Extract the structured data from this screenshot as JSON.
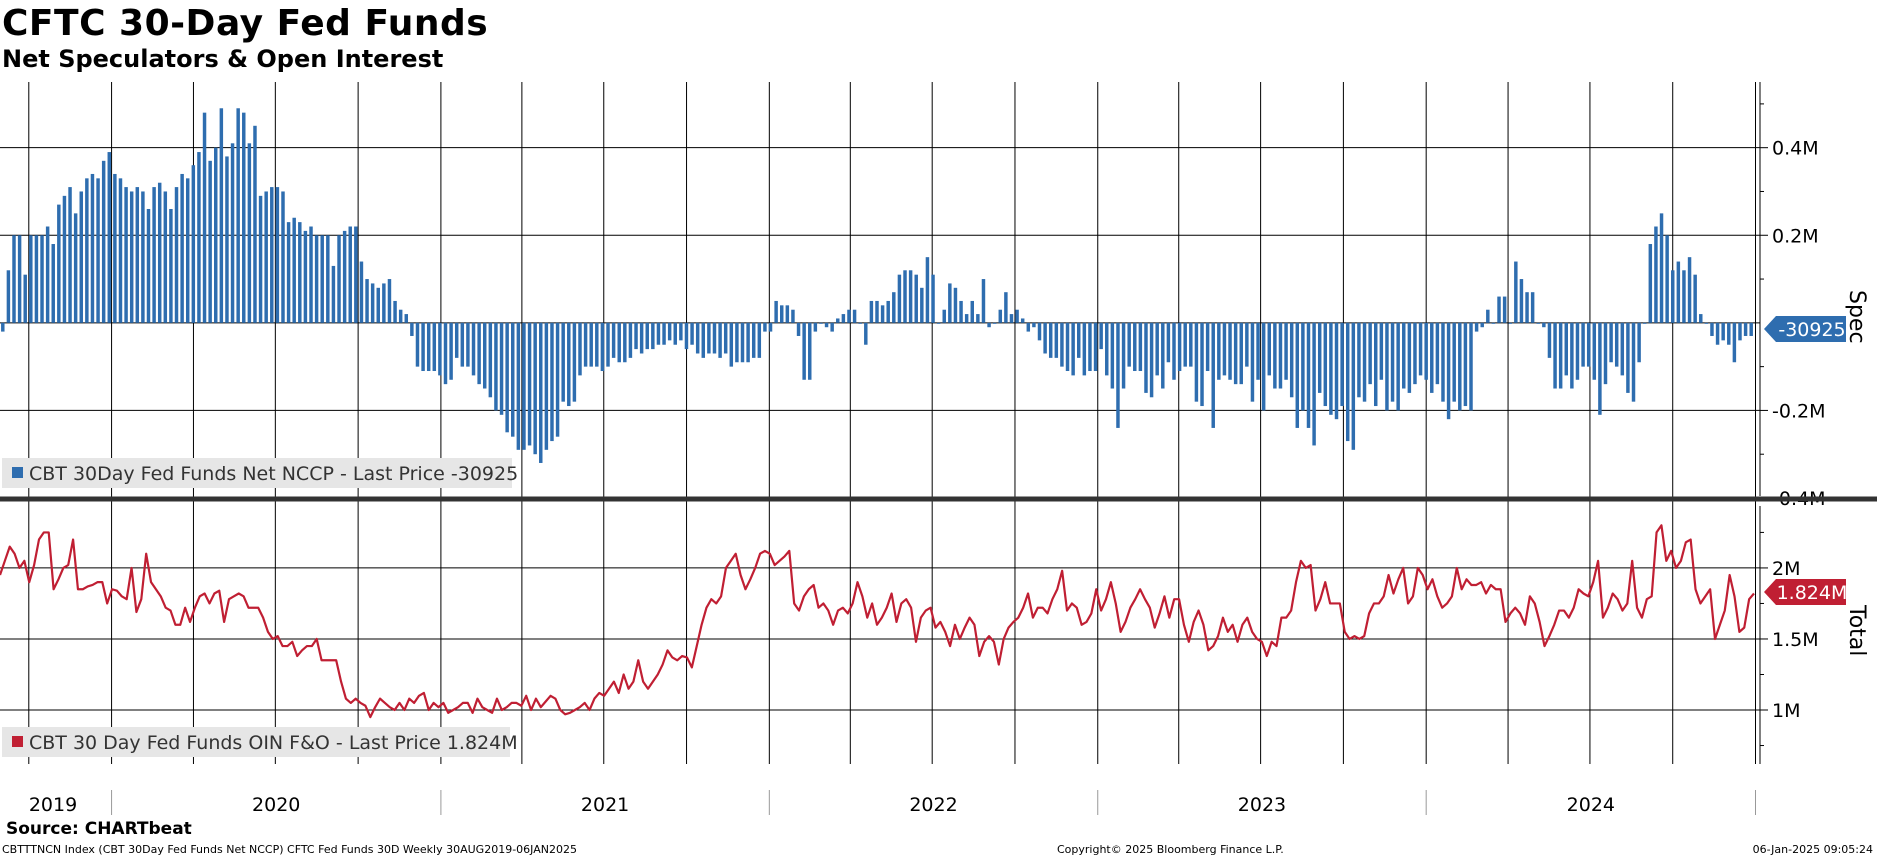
{
  "title": "CFTC 30-Day Fed Funds",
  "subtitle": "Net Speculators & Open Interest",
  "source": "Source: CHARTbeat",
  "footer": {
    "left": "CBTTTNCN Index (CBT 30Day Fed Funds Net NCCP) CFTC Fed Funds 30D  Weekly 30AUG2019-06JAN2025",
    "center": "Copyright© 2025 Bloomberg Finance L.P.",
    "right": "06-Jan-2025 09:05:24"
  },
  "colors": {
    "spec": "#2e6daf",
    "total": "#c01f33",
    "grid": "#000000"
  },
  "chart_data": [
    {
      "type": "bar",
      "panel": "top",
      "axis_title": "Spec",
      "legend": "CBT 30Day Fed Funds Net NCCP - Last Price -30925",
      "last_value_label": "-30925",
      "last_value": -30925,
      "ylim": [
        -0.4,
        0.55
      ],
      "y_unit": "M",
      "yticks": [
        0.4,
        0.2,
        -0.2,
        -0.4
      ],
      "ytick_labels": [
        "0.4M",
        "0.2M",
        "-0.2M",
        "-0.4M"
      ],
      "x_start": "2019-08-30",
      "x_end": "2025-01-06",
      "frequency": "weekly",
      "values": [
        -0.02,
        0.12,
        0.2,
        0.2,
        0.11,
        0.2,
        0.2,
        0.2,
        0.22,
        0.18,
        0.27,
        0.29,
        0.31,
        0.25,
        0.3,
        0.33,
        0.34,
        0.33,
        0.37,
        0.39,
        0.34,
        0.33,
        0.31,
        0.3,
        0.31,
        0.3,
        0.26,
        0.31,
        0.32,
        0.3,
        0.26,
        0.31,
        0.34,
        0.33,
        0.36,
        0.39,
        0.48,
        0.37,
        0.4,
        0.49,
        0.38,
        0.41,
        0.49,
        0.48,
        0.41,
        0.45,
        0.29,
        0.3,
        0.31,
        0.31,
        0.3,
        0.23,
        0.24,
        0.23,
        0.21,
        0.22,
        0.2,
        0.2,
        0.2,
        0.13,
        0.2,
        0.21,
        0.22,
        0.22,
        0.14,
        0.1,
        0.09,
        0.08,
        0.09,
        0.1,
        0.05,
        0.03,
        0.02,
        -0.03,
        -0.1,
        -0.11,
        -0.11,
        -0.11,
        -0.12,
        -0.14,
        -0.13,
        -0.08,
        -0.1,
        -0.1,
        -0.12,
        -0.14,
        -0.15,
        -0.17,
        -0.2,
        -0.21,
        -0.25,
        -0.26,
        -0.29,
        -0.29,
        -0.28,
        -0.3,
        -0.32,
        -0.29,
        -0.27,
        -0.26,
        -0.18,
        -0.19,
        -0.18,
        -0.12,
        -0.1,
        -0.1,
        -0.1,
        -0.11,
        -0.1,
        -0.08,
        -0.09,
        -0.09,
        -0.08,
        -0.06,
        -0.07,
        -0.06,
        -0.06,
        -0.05,
        -0.05,
        -0.04,
        -0.05,
        -0.04,
        -0.06,
        -0.05,
        -0.07,
        -0.08,
        -0.07,
        -0.07,
        -0.08,
        -0.07,
        -0.1,
        -0.09,
        -0.09,
        -0.09,
        -0.08,
        -0.08,
        -0.02,
        -0.02,
        0.05,
        0.04,
        0.04,
        0.03,
        -0.03,
        -0.13,
        -0.13,
        -0.02,
        0.0,
        -0.01,
        -0.02,
        0.01,
        0.02,
        0.03,
        0.03,
        0.0,
        -0.05,
        0.05,
        0.05,
        0.04,
        0.05,
        0.07,
        0.11,
        0.12,
        0.12,
        0.11,
        0.08,
        0.15,
        0.11,
        0.0,
        0.03,
        0.09,
        0.08,
        0.05,
        0.02,
        0.05,
        0.02,
        0.1,
        -0.01,
        0.0,
        0.03,
        0.07,
        0.02,
        0.03,
        0.01,
        -0.02,
        -0.01,
        -0.04,
        -0.07,
        -0.08,
        -0.08,
        -0.1,
        -0.11,
        -0.12,
        -0.08,
        -0.12,
        -0.11,
        -0.11,
        -0.06,
        -0.12,
        -0.15,
        -0.24,
        -0.15,
        -0.1,
        -0.11,
        -0.11,
        -0.16,
        -0.17,
        -0.12,
        -0.15,
        -0.09,
        -0.13,
        -0.11,
        -0.1,
        -0.1,
        -0.18,
        -0.19,
        -0.11,
        -0.24,
        -0.13,
        -0.12,
        -0.13,
        -0.14,
        -0.14,
        -0.1,
        -0.18,
        -0.13,
        -0.2,
        -0.12,
        -0.15,
        -0.15,
        -0.13,
        -0.17,
        -0.24,
        -0.2,
        -0.24,
        -0.28,
        -0.16,
        -0.19,
        -0.21,
        -0.22,
        -0.19,
        -0.27,
        -0.29,
        -0.17,
        -0.18,
        -0.14,
        -0.19,
        -0.13,
        -0.2,
        -0.18,
        -0.2,
        -0.15,
        -0.16,
        -0.14,
        -0.12,
        -0.13,
        -0.16,
        -0.14,
        -0.18,
        -0.22,
        -0.18,
        -0.2,
        -0.19,
        -0.2,
        -0.02,
        -0.01,
        0.03,
        0.0,
        0.06,
        0.06,
        0.0,
        0.14,
        0.1,
        0.07,
        0.07,
        0.0,
        -0.01,
        -0.08,
        -0.15,
        -0.15,
        -0.12,
        -0.15,
        -0.13,
        -0.1,
        -0.1,
        -0.13,
        -0.21,
        -0.14,
        -0.09,
        -0.1,
        -0.12,
        -0.16,
        -0.18,
        -0.09,
        0.0,
        0.18,
        0.22,
        0.25,
        0.2,
        0.12,
        0.14,
        0.12,
        0.15,
        0.11,
        0.02,
        0.0,
        -0.03,
        -0.05,
        -0.04,
        -0.05,
        -0.09,
        -0.04,
        -0.03,
        -0.03
      ]
    },
    {
      "type": "line",
      "panel": "bottom",
      "axis_title": "Total",
      "legend": "CBT 30 Day Fed Funds OIN F&O - Last Price 1.824M",
      "last_value_label": "1.824M",
      "last_value": 1.824,
      "ylim": [
        0.62,
        2.45
      ],
      "y_unit": "M",
      "yticks": [
        2.0,
        1.5,
        1.0
      ],
      "ytick_labels": [
        "2M",
        "1.5M",
        "1M"
      ],
      "x_start": "2019-08-30",
      "x_end": "2025-01-06",
      "frequency": "weekly",
      "values": [
        1.95,
        2.05,
        2.15,
        2.1,
        2.0,
        2.05,
        1.9,
        2.02,
        2.2,
        2.25,
        2.25,
        1.85,
        1.92,
        2.0,
        2.02,
        2.2,
        1.85,
        1.85,
        1.87,
        1.88,
        1.9,
        1.9,
        1.75,
        1.85,
        1.84,
        1.8,
        1.78,
        2.0,
        1.69,
        1.78,
        2.1,
        1.9,
        1.85,
        1.8,
        1.72,
        1.7,
        1.6,
        1.6,
        1.72,
        1.62,
        1.72,
        1.8,
        1.82,
        1.75,
        1.82,
        1.84,
        1.62,
        1.78,
        1.8,
        1.82,
        1.8,
        1.72,
        1.72,
        1.72,
        1.65,
        1.55,
        1.5,
        1.52,
        1.45,
        1.45,
        1.48,
        1.38,
        1.42,
        1.45,
        1.45,
        1.5,
        1.35,
        1.35,
        1.35,
        1.35,
        1.2,
        1.08,
        1.05,
        1.08,
        1.05,
        1.03,
        0.95,
        1.02,
        1.08,
        1.05,
        1.02,
        1.0,
        1.05,
        1.0,
        1.08,
        1.05,
        1.1,
        1.12,
        1.0,
        1.05,
        1.02,
        1.05,
        0.98,
        1.0,
        1.02,
        1.05,
        1.05,
        0.98,
        1.08,
        1.02,
        1.0,
        0.98,
        1.08,
        1.0,
        1.02,
        1.05,
        1.05,
        1.03,
        1.1,
        1.0,
        1.08,
        1.02,
        1.06,
        1.1,
        1.08,
        1.0,
        0.97,
        0.98,
        1.0,
        1.02,
        1.05,
        1.0,
        1.08,
        1.12,
        1.1,
        1.15,
        1.2,
        1.12,
        1.25,
        1.15,
        1.2,
        1.35,
        1.2,
        1.15,
        1.2,
        1.25,
        1.32,
        1.42,
        1.37,
        1.35,
        1.38,
        1.37,
        1.3,
        1.45,
        1.6,
        1.72,
        1.78,
        1.75,
        1.8,
        2.0,
        2.05,
        2.1,
        1.95,
        1.85,
        1.92,
        2.0,
        2.1,
        2.12,
        2.1,
        2.02,
        2.05,
        2.08,
        2.12,
        1.75,
        1.7,
        1.8,
        1.85,
        1.88,
        1.72,
        1.75,
        1.7,
        1.6,
        1.7,
        1.72,
        1.68,
        1.75,
        1.9,
        1.8,
        1.65,
        1.75,
        1.6,
        1.65,
        1.72,
        1.82,
        1.62,
        1.75,
        1.78,
        1.72,
        1.48,
        1.65,
        1.7,
        1.72,
        1.58,
        1.62,
        1.55,
        1.45,
        1.6,
        1.5,
        1.58,
        1.65,
        1.6,
        1.38,
        1.48,
        1.52,
        1.48,
        1.32,
        1.5,
        1.58,
        1.62,
        1.65,
        1.72,
        1.82,
        1.65,
        1.72,
        1.72,
        1.68,
        1.78,
        1.85,
        1.98,
        1.7,
        1.75,
        1.72,
        1.6,
        1.62,
        1.68,
        1.85,
        1.7,
        1.78,
        1.9,
        1.75,
        1.55,
        1.62,
        1.72,
        1.78,
        1.85,
        1.78,
        1.72,
        1.58,
        1.68,
        1.8,
        1.65,
        1.78,
        1.78,
        1.6,
        1.48,
        1.62,
        1.7,
        1.6,
        1.42,
        1.45,
        1.52,
        1.65,
        1.55,
        1.6,
        1.48,
        1.6,
        1.65,
        1.55,
        1.5,
        1.48,
        1.38,
        1.48,
        1.45,
        1.65,
        1.65,
        1.7,
        1.9,
        2.05,
        2.0,
        2.02,
        1.7,
        1.78,
        1.9,
        1.75,
        1.75,
        1.75,
        1.55,
        1.5,
        1.52,
        1.5,
        1.52,
        1.68,
        1.75,
        1.75,
        1.8,
        1.95,
        1.82,
        1.92,
        2.0,
        1.75,
        1.8,
        2.0,
        1.95,
        1.85,
        1.92,
        1.8,
        1.72,
        1.75,
        1.8,
        2.0,
        1.85,
        1.92,
        1.88,
        1.88,
        1.9,
        1.82,
        1.88,
        1.85,
        1.85,
        1.62,
        1.68,
        1.72,
        1.68,
        1.6,
        1.8,
        1.75,
        1.62,
        1.45,
        1.52,
        1.6,
        1.7,
        1.7,
        1.65,
        1.72,
        1.85,
        1.82,
        1.8,
        1.9,
        2.05,
        1.65,
        1.72,
        1.82,
        1.78,
        1.7,
        1.75,
        2.05,
        1.72,
        1.65,
        1.78,
        1.8,
        2.25,
        2.3,
        2.05,
        2.12,
        2.0,
        2.05,
        2.18,
        2.2,
        1.85,
        1.75,
        1.8,
        1.85,
        1.5,
        1.6,
        1.7,
        1.95,
        1.8,
        1.55,
        1.58,
        1.78,
        1.82
      ]
    }
  ],
  "x_axis": {
    "year_labels": [
      "2019",
      "2020",
      "2021",
      "2022",
      "2023",
      "2024"
    ]
  }
}
